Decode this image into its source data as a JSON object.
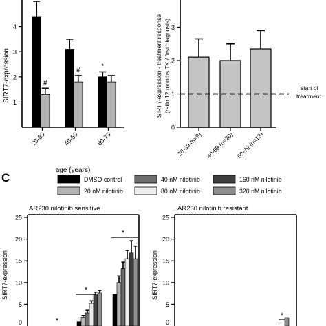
{
  "panel_letter": "C",
  "colors": {
    "dmso": "#000000",
    "nm20": "#b3b3b3",
    "nm40": "#6e6e6e",
    "nm80": "#ececec",
    "nm160": "#3f3f3f",
    "nm320": "#8c8c8c",
    "treatment": "#c4c4c4"
  },
  "chart_data": [
    {
      "type": "bar",
      "title": "",
      "ylabel": "SIRT7-expression",
      "xlabel": "age (years)",
      "ylim": [
        0,
        5
      ],
      "visible_yticks": [
        1,
        2,
        3,
        4
      ],
      "categories": [
        "20-39",
        "40-59",
        "60-79"
      ],
      "series": [
        {
          "color": "#000000",
          "values": [
            4.4,
            3.1,
            2.0
          ],
          "errors": [
            0.6,
            0.4,
            0.2
          ]
        },
        {
          "color": "#b3b3b3",
          "values": [
            1.3,
            1.8,
            1.8
          ],
          "errors": [
            0.25,
            0.25,
            0.25
          ]
        }
      ],
      "annotations": [
        "#",
        "#",
        "*"
      ],
      "annotation_targets": [
        [
          0,
          1
        ],
        [
          1,
          1
        ],
        [
          2,
          0
        ]
      ]
    },
    {
      "type": "bar",
      "title": "",
      "ylabel": "SIRT7-expression - treatment response (ratio 12 months TKI/ first diagnosis)",
      "ylim": [
        0,
        4
      ],
      "yticks": [
        0,
        1,
        2,
        3
      ],
      "categories": [
        "20-39 (n=9)",
        "40-59 (n=20)",
        "60-79 (n=13)"
      ],
      "values": [
        2.1,
        2.0,
        2.35
      ],
      "errors": [
        0.55,
        0.5,
        0.55
      ],
      "reference_line": {
        "value": 1,
        "label": "start of treatment"
      }
    },
    {
      "type": "bar",
      "title": "AR230 nilotinib sensitive",
      "ylabel": "SIRT7-expression",
      "ylim": [
        0,
        25
      ],
      "yticks": [
        0,
        5,
        10,
        15,
        20,
        25
      ],
      "legend": [
        "DMSO control",
        "40 nM nilotinib",
        "160 nM nilotinib",
        "20 nM nilotinib",
        "80 nM nilotinib",
        "320 nM nilotinib"
      ],
      "groups": [
        {
          "values": [
            0,
            0,
            0,
            0,
            0,
            0
          ],
          "errors": [
            0,
            0,
            0,
            0,
            0,
            0
          ]
        },
        {
          "values": [
            1.0,
            2.0,
            3.0,
            5.2,
            7.2,
            7.6
          ],
          "errors": [
            0,
            0.4,
            0.6,
            0.6,
            0.6,
            0.6
          ]
        },
        {
          "values": [
            7.3,
            10.0,
            13.2,
            15.5,
            16.8,
            15.5
          ],
          "errors": [
            0,
            1.5,
            1.5,
            1.9,
            2.8,
            2.9
          ]
        }
      ],
      "significance": [
        {
          "group": 0,
          "label": "*"
        },
        {
          "group": 1,
          "label": "*"
        },
        {
          "group": 2,
          "label": "*"
        }
      ]
    },
    {
      "type": "bar",
      "title": "AR230 nilotinib resistant",
      "ylabel": "SIRT7-expression",
      "ylim": [
        0,
        25
      ],
      "yticks": [
        0,
        5,
        10,
        15,
        20,
        25
      ],
      "significance": [
        {
          "label": "*"
        }
      ]
    }
  ]
}
